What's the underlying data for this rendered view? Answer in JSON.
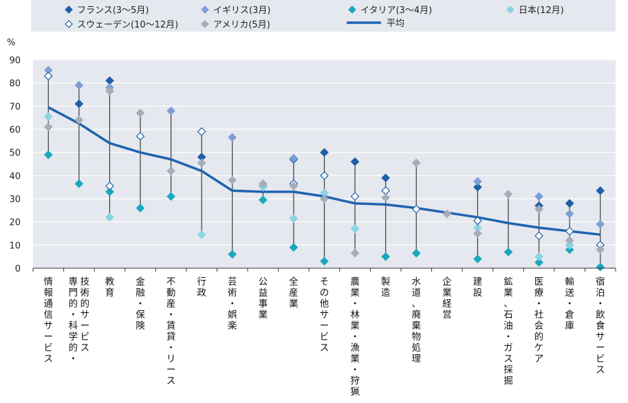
{
  "chart_data": {
    "type": "scatter",
    "ylabel": "%",
    "ylim": [
      0,
      90
    ],
    "yticks": [
      0,
      10,
      20,
      30,
      40,
      50,
      60,
      70,
      80,
      90
    ],
    "grid": true,
    "legend_position": "top",
    "categories": [
      "情報通信サービス",
      "専門的・科学的・技術的サービス",
      "教育",
      "金融・保険",
      "不動産・賃貸・リース",
      "行政",
      "芸術・娯楽",
      "公益事業",
      "全産業",
      "その他サービス",
      "農業・林業・漁業・狩猟",
      "製造",
      "水道、廃棄物処理",
      "企業経営",
      "建設",
      "鉱業、石油・ガス採掘",
      "医療・社会的ケア",
      "輸送・倉庫",
      "宿泊・飲食サービス"
    ],
    "category_lines": [
      [
        "情報通信サービス"
      ],
      [
        "専門的・科学的・",
        "技術的サービス"
      ],
      [
        "教育"
      ],
      [
        "金融・保険"
      ],
      [
        "不動産・賃貸・リース"
      ],
      [
        "行政"
      ],
      [
        "芸術・娯楽"
      ],
      [
        "公益事業"
      ],
      [
        "全産業"
      ],
      [
        "その他サービス"
      ],
      [
        "農業・林業・漁業・狩猟"
      ],
      [
        "製造"
      ],
      [
        "水道、廃棄物処理"
      ],
      [
        "企業経営"
      ],
      [
        "建設"
      ],
      [
        "鉱業、石油・ガス採掘"
      ],
      [
        "医療・社会的ケア"
      ],
      [
        "輸送・倉庫"
      ],
      [
        "宿泊・飲食サービス"
      ]
    ],
    "series": [
      {
        "name": "フランス(3～5月)",
        "marker": "diamond-filled",
        "color": "#1f5fa8",
        "values": [
          null,
          71,
          81,
          null,
          null,
          48,
          null,
          null,
          47,
          50,
          46,
          39,
          null,
          null,
          35,
          null,
          27,
          28,
          33.5
        ]
      },
      {
        "name": "イギリス(3月)",
        "marker": "diamond-filled",
        "color": "#7d9fd6",
        "values": [
          85.5,
          79,
          78,
          null,
          68,
          null,
          56.5,
          35.5,
          47.5,
          null,
          null,
          null,
          null,
          null,
          37.5,
          null,
          31,
          23.5,
          19
        ]
      },
      {
        "name": "イタリア(3～4月)",
        "marker": "diamond-filled",
        "color": "#1ba8bd",
        "values": [
          49,
          36.5,
          33,
          26,
          31,
          null,
          6,
          29.5,
          9,
          3,
          null,
          5,
          6.5,
          null,
          4,
          7,
          2.5,
          8,
          0.5
        ]
      },
      {
        "name": "日本(12月)",
        "marker": "diamond-filled",
        "color": "#8ad4e3",
        "values": [
          65.5,
          null,
          22,
          null,
          null,
          14.5,
          null,
          35,
          21.5,
          32.5,
          17,
          null,
          null,
          null,
          17.5,
          null,
          5,
          10,
          null
        ]
      },
      {
        "name": "スウェーデン(10～12月)",
        "marker": "diamond-open",
        "color": "#1f5fa8",
        "values": [
          83,
          null,
          35.5,
          57,
          null,
          59,
          null,
          null,
          36.5,
          40,
          31,
          33.5,
          25.5,
          null,
          20.5,
          null,
          14,
          16,
          10
        ]
      },
      {
        "name": "アメリカ(5月)",
        "marker": "diamond-filled",
        "color": "#a5adb8",
        "values": [
          61,
          64,
          76.5,
          67,
          42,
          45.5,
          38,
          36.5,
          35.5,
          30,
          6.5,
          30.5,
          45.5,
          23.5,
          15,
          32,
          25.5,
          12,
          8
        ]
      },
      {
        "name": "平均",
        "marker": "line",
        "color": "#1f63b0",
        "values": [
          69.5,
          62.5,
          54,
          50,
          47,
          42,
          33.5,
          33,
          33,
          31,
          28,
          27.5,
          26,
          24,
          22,
          19.5,
          17.5,
          16,
          14.5
        ]
      }
    ]
  }
}
